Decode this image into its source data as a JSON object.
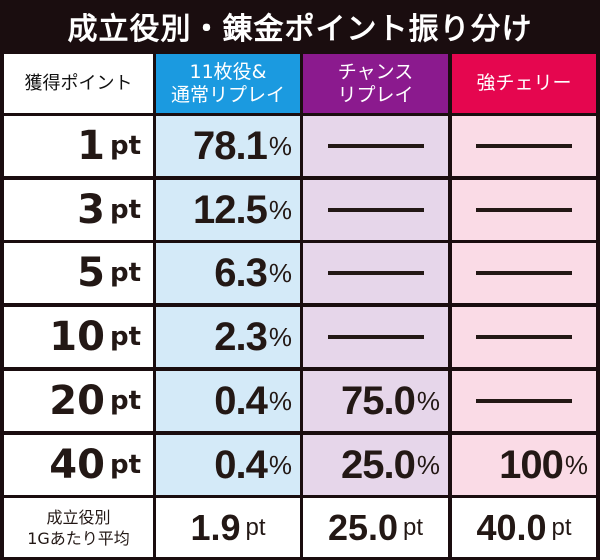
{
  "title": "成立役別・錬金ポイント振り分け",
  "headers": {
    "col0": "獲得ポイント",
    "col1_line1": "11枚役&",
    "col1_line2": "通常リプレイ",
    "col2_line1": "チャンス",
    "col2_line2": "リプレイ",
    "col3": "強チェリー"
  },
  "colors": {
    "blue_header": "#1b9ae0",
    "purple_header": "#8b1a8e",
    "pink_header": "#e5064f",
    "blue_cell": "#d4eaf8",
    "purple_cell": "#e6d6ea",
    "pink_cell": "#fadbe6"
  },
  "unit_pt": "pt",
  "unit_pct": "%",
  "rows": [
    {
      "points": "1",
      "c1": "78.1",
      "c2": null,
      "c3": null
    },
    {
      "points": "3",
      "c1": "12.5",
      "c2": null,
      "c3": null
    },
    {
      "points": "5",
      "c1": "6.3",
      "c2": null,
      "c3": null
    },
    {
      "points": "10",
      "c1": "2.3",
      "c2": null,
      "c3": null
    },
    {
      "points": "20",
      "c1": "0.4",
      "c2": "75.0",
      "c3": null
    },
    {
      "points": "40",
      "c1": "0.4",
      "c2": "25.0",
      "c3": "100"
    }
  ],
  "average": {
    "label_line1": "成立役別",
    "label_line2": "1Gあたり平均",
    "c1": "1.9",
    "c2": "25.0",
    "c3": "40.0"
  },
  "chart_data": {
    "type": "table",
    "title": "成立役別・錬金ポイント振り分け",
    "columns": [
      "獲得ポイント",
      "11枚役&通常リプレイ",
      "チャンスリプレイ",
      "強チェリー"
    ],
    "rows": [
      [
        "1pt",
        "78.1%",
        "—",
        "—"
      ],
      [
        "3pt",
        "12.5%",
        "—",
        "—"
      ],
      [
        "5pt",
        "6.3%",
        "—",
        "—"
      ],
      [
        "10pt",
        "2.3%",
        "—",
        "—"
      ],
      [
        "20pt",
        "0.4%",
        "75.0%",
        "—"
      ],
      [
        "40pt",
        "0.4%",
        "25.0%",
        "100%"
      ],
      [
        "成立役別 1Gあたり平均",
        "1.9pt",
        "25.0pt",
        "40.0pt"
      ]
    ]
  }
}
